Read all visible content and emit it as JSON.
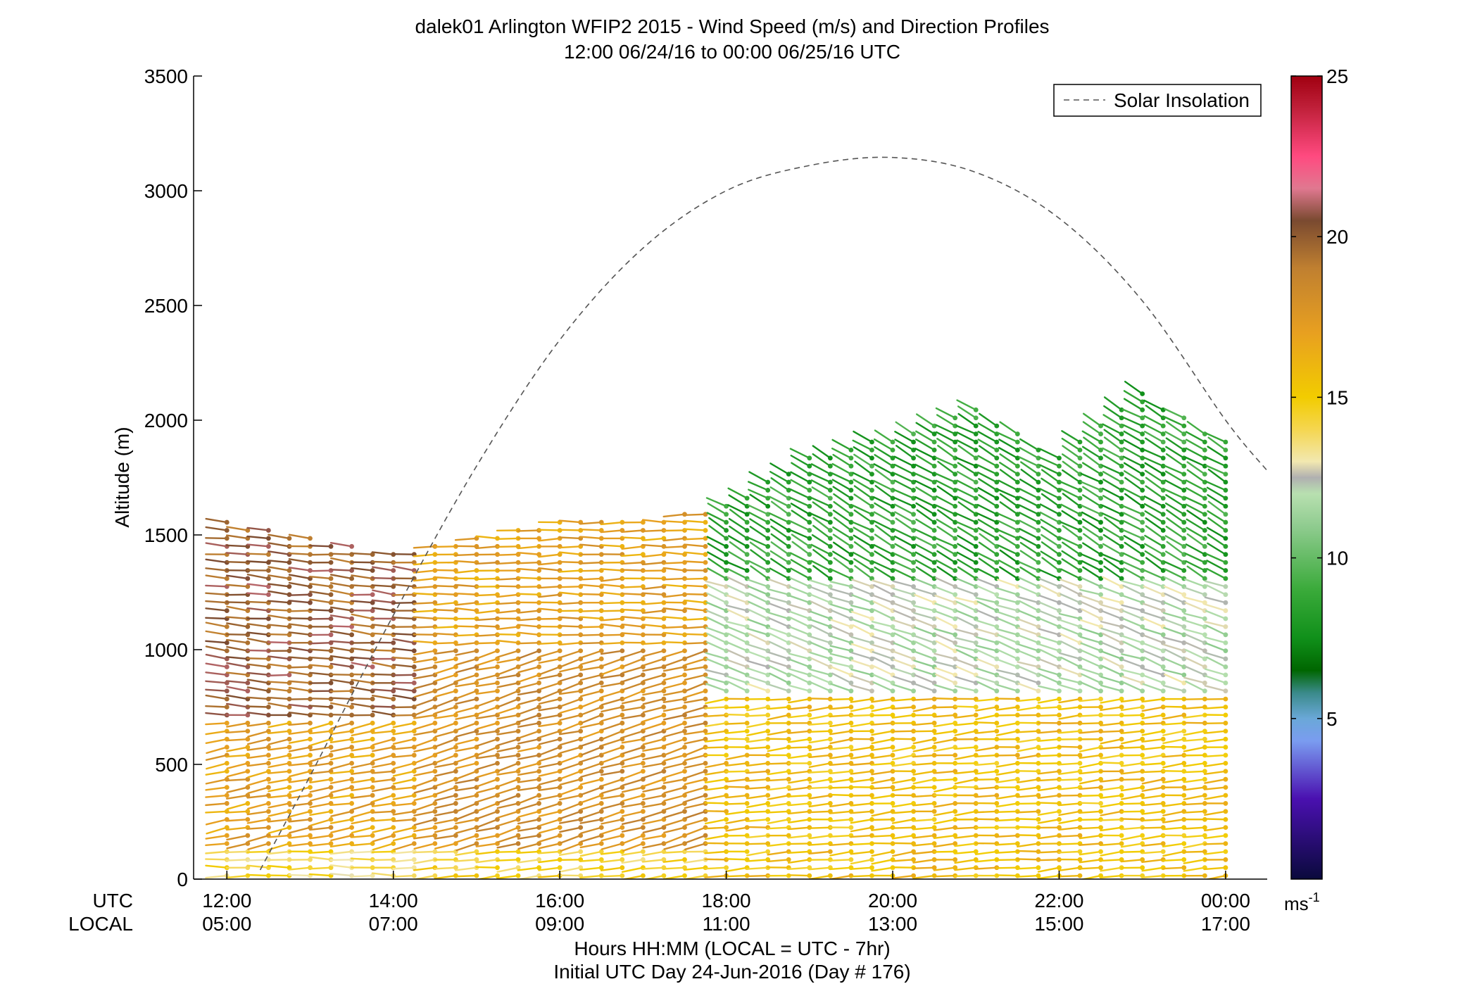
{
  "chart_data": {
    "type": "scatter",
    "title_line1": "dalek01 Arlington WFIP2 2015 - Wind Speed (m/s) and Direction Profiles",
    "title_line2": "12:00 06/24/16 to 00:00 06/25/16  UTC",
    "ylabel": "Altitude (m)",
    "xlabel_line1": "Hours HH:MM  (LOCAL = UTC - 7hr)",
    "xlabel_line2": "Initial UTC Day 24-Jun-2016 (Day # 176)",
    "xaxis_row_label_utc": "UTC",
    "xaxis_row_label_local": "LOCAL",
    "ylim": [
      0,
      3500
    ],
    "xlim_hours_utc": [
      11.6,
      24.5
    ],
    "y_ticks": [
      {
        "value": 0,
        "label": "0"
      },
      {
        "value": 500,
        "label": "500"
      },
      {
        "value": 1000,
        "label": "1000"
      },
      {
        "value": 1500,
        "label": "1500"
      },
      {
        "value": 2000,
        "label": "2000"
      },
      {
        "value": 2500,
        "label": "2500"
      },
      {
        "value": 3000,
        "label": "3000"
      },
      {
        "value": 3500,
        "label": "3500"
      }
    ],
    "x_ticks": [
      {
        "value": 12,
        "utc": "12:00",
        "local": "05:00"
      },
      {
        "value": 14,
        "utc": "14:00",
        "local": "07:00"
      },
      {
        "value": 16,
        "utc": "16:00",
        "local": "09:00"
      },
      {
        "value": 18,
        "utc": "18:00",
        "local": "11:00"
      },
      {
        "value": 20,
        "utc": "20:00",
        "local": "13:00"
      },
      {
        "value": 22,
        "utc": "22:00",
        "local": "15:00"
      },
      {
        "value": 24,
        "utc": "00:00",
        "local": "17:00"
      }
    ],
    "legend": {
      "position": "top-right",
      "entries": [
        "Solar Insolation"
      ]
    },
    "solar_insolation_curve": {
      "style": "dashed",
      "color": "#555555",
      "points": [
        [
          12.4,
          40
        ],
        [
          13,
          450
        ],
        [
          14,
          1150
        ],
        [
          15,
          1800
        ],
        [
          16,
          2350
        ],
        [
          17,
          2750
        ],
        [
          18,
          3000
        ],
        [
          19,
          3110
        ],
        [
          20,
          3145
        ],
        [
          21,
          3080
        ],
        [
          22,
          2880
        ],
        [
          23,
          2520
        ],
        [
          24,
          2000
        ],
        [
          24.5,
          1780
        ]
      ]
    },
    "colorbar": {
      "range": [
        0,
        25
      ],
      "ticks": [
        5,
        10,
        15,
        20,
        25
      ],
      "unit_base": "ms",
      "unit_exponent": "-1",
      "stops": [
        {
          "value": 0,
          "color": "#0a0a3c"
        },
        {
          "value": 2.5,
          "color": "#4a10b0"
        },
        {
          "value": 4.3,
          "color": "#7a9cf0"
        },
        {
          "value": 5,
          "color": "#6aa8d8"
        },
        {
          "value": 5.8,
          "color": "#3a8a8a"
        },
        {
          "value": 6.5,
          "color": "#006600"
        },
        {
          "value": 7.5,
          "color": "#10901a"
        },
        {
          "value": 9,
          "color": "#3aaa3a"
        },
        {
          "value": 11,
          "color": "#90cc90"
        },
        {
          "value": 12,
          "color": "#b8e0b0"
        },
        {
          "value": 12.5,
          "color": "#b0b0b0"
        },
        {
          "value": 13,
          "color": "#f2e8b0"
        },
        {
          "value": 14,
          "color": "#f5d650"
        },
        {
          "value": 15,
          "color": "#f2cc00"
        },
        {
          "value": 17,
          "color": "#e8a020"
        },
        {
          "value": 19,
          "color": "#c08030"
        },
        {
          "value": 20.5,
          "color": "#7a4a30"
        },
        {
          "value": 21.5,
          "color": "#e07890"
        },
        {
          "value": 22.5,
          "color": "#ff4a80"
        },
        {
          "value": 24,
          "color": "#c0203a"
        },
        {
          "value": 25,
          "color": "#a00010"
        }
      ]
    },
    "wind_profiles_summary": {
      "time_step_minutes": 15,
      "altitude_step_m": 35,
      "max_altitude_by_hour": [
        [
          12,
          1560
        ],
        [
          13,
          1490
        ],
        [
          14,
          1420
        ],
        [
          15,
          1490
        ],
        [
          16,
          1560
        ],
        [
          17,
          1560
        ],
        [
          18,
          1630
        ],
        [
          19,
          1840
        ],
        [
          20,
          1930
        ],
        [
          21,
          2050
        ],
        [
          22,
          1840
        ],
        [
          23,
          2130
        ],
        [
          24,
          1910
        ]
      ],
      "speed_regimes_ms": [
        {
          "hours": [
            12.0,
            14.5
          ],
          "altitudes": [
            0,
            150
          ],
          "speed": 14,
          "direction_deg": 270
        },
        {
          "hours": [
            12.0,
            14.5
          ],
          "altitudes": [
            150,
            700
          ],
          "speed": 17,
          "direction_deg": 260
        },
        {
          "hours": [
            12.0,
            14.5
          ],
          "altitudes": [
            700,
            1400
          ],
          "speed": 20,
          "direction_deg": 275
        },
        {
          "hours": [
            14.5,
            18.0
          ],
          "altitudes": [
            0,
            150
          ],
          "speed": 14.5,
          "direction_deg": 265
        },
        {
          "hours": [
            14.5,
            18.0
          ],
          "altitudes": [
            150,
            1000
          ],
          "speed": 18,
          "direction_deg": 255
        },
        {
          "hours": [
            14.5,
            18.0
          ],
          "altitudes": [
            1000,
            1600
          ],
          "speed": 17,
          "direction_deg": 270
        },
        {
          "hours": [
            18.0,
            24.0
          ],
          "altitudes": [
            0,
            800
          ],
          "speed": 15.5,
          "direction_deg": 265
        },
        {
          "hours": [
            18.0,
            24.0
          ],
          "altitudes": [
            800,
            1300
          ],
          "speed": 12,
          "direction_deg": 290
        },
        {
          "hours": [
            18.0,
            24.0
          ],
          "altitudes": [
            1300,
            2100
          ],
          "speed": 8.5,
          "direction_deg": 300
        }
      ]
    }
  }
}
